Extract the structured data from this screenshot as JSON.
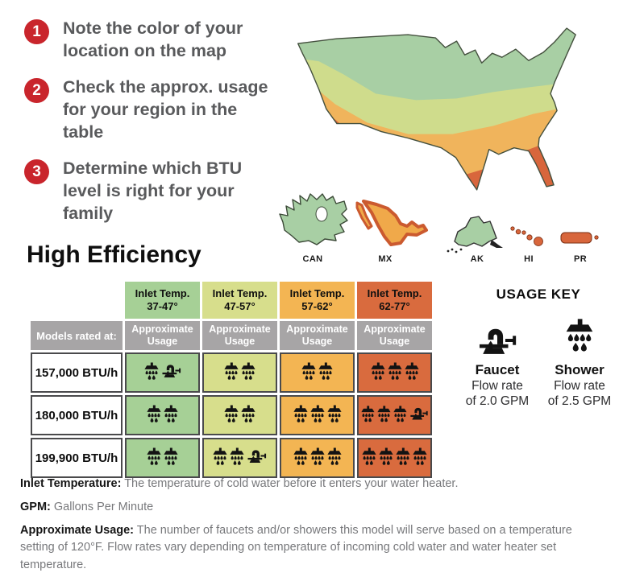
{
  "steps": [
    {
      "number": "1",
      "text": "Note the color of your location on the map"
    },
    {
      "number": "2",
      "text": "Check the approx. usage for your region in the table"
    },
    {
      "number": "3",
      "text": "Determine which BTU level is right for your family"
    }
  ],
  "step_badge_color": "#c9252c",
  "map": {
    "band_colors": [
      "#a8cfa4",
      "#cfdc8c",
      "#f0b45c",
      "#d8663c"
    ],
    "regions": [
      {
        "label": "CAN",
        "color": "#a8cfa4"
      },
      {
        "label": "MX",
        "color": "#f0a94a"
      },
      {
        "label": "AK",
        "color": "#a8cfa4"
      },
      {
        "label": "HI",
        "color": "#d8663c"
      },
      {
        "label": "PR",
        "color": "#d8663c"
      }
    ]
  },
  "section_title": "High Efficiency",
  "table": {
    "corner_label": "Models rated at:",
    "columns": [
      {
        "header_line1": "Inlet Temp.",
        "header_line2": "37-47°",
        "subheader": "Approximate Usage",
        "color": "#a6d096"
      },
      {
        "header_line1": "Inlet Temp.",
        "header_line2": "47-57°",
        "subheader": "Approximate Usage",
        "color": "#d7de8c"
      },
      {
        "header_line1": "Inlet Temp.",
        "header_line2": "57-62°",
        "subheader": "Approximate Usage",
        "color": "#f3b553"
      },
      {
        "header_line1": "Inlet Temp.",
        "header_line2": "62-77°",
        "subheader": "Approximate Usage",
        "color": "#d96b3e"
      }
    ],
    "rows": [
      {
        "label": "157,000 BTU/h",
        "cells": [
          {
            "showers": 1,
            "faucets": 1
          },
          {
            "showers": 2,
            "faucets": 0
          },
          {
            "showers": 2,
            "faucets": 0
          },
          {
            "showers": 3,
            "faucets": 0
          }
        ]
      },
      {
        "label": "180,000 BTU/h",
        "cells": [
          {
            "showers": 2,
            "faucets": 0
          },
          {
            "showers": 2,
            "faucets": 0
          },
          {
            "showers": 3,
            "faucets": 0
          },
          {
            "showers": 3,
            "faucets": 1
          }
        ]
      },
      {
        "label": "199,900 BTU/h",
        "cells": [
          {
            "showers": 2,
            "faucets": 0
          },
          {
            "showers": 2,
            "faucets": 1
          },
          {
            "showers": 3,
            "faucets": 0
          },
          {
            "showers": 4,
            "faucets": 0
          }
        ]
      }
    ]
  },
  "usage_key": {
    "title": "USAGE KEY",
    "items": [
      {
        "name": "Faucet",
        "line1": "Flow rate",
        "line2": "of 2.0 GPM"
      },
      {
        "name": "Shower",
        "line1": "Flow rate",
        "line2": "of 2.5 GPM"
      }
    ]
  },
  "notes": [
    {
      "term": "Inlet Temperature:",
      "definition": " The temperature of cold water before it enters your water heater."
    },
    {
      "term": "GPM:",
      "definition": " Gallons Per Minute"
    },
    {
      "term": "Approximate Usage:",
      "definition": " The number of faucets and/or showers this model will serve based on a temperature setting of 120°F. Flow rates vary depending on temperature of incoming cold water and water heater set temperature."
    }
  ]
}
